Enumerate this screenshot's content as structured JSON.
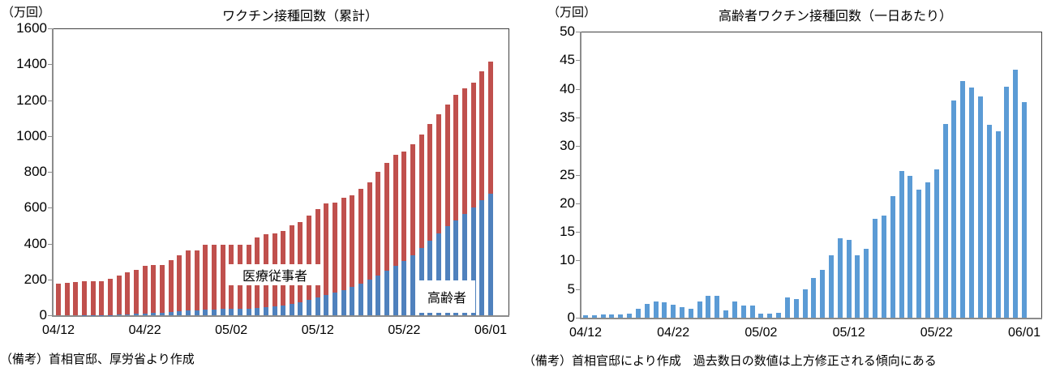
{
  "left": {
    "unit": "（万回）",
    "title": "ワクチン接種回数（累計）",
    "note": "（備考）首相官邸、厚労省より作成",
    "yticks": [
      "1600",
      "1400",
      "1200",
      "1000",
      "800",
      "600",
      "400",
      "200",
      "0"
    ],
    "xticks": [
      "04/12",
      "04/22",
      "05/02",
      "05/12",
      "05/22",
      "06/01"
    ],
    "label_medical": "医療従事者",
    "label_elderly": "高齢者",
    "colors": {
      "medical": "#c0504d",
      "elderly": "#4f81bd"
    }
  },
  "right": {
    "unit": "（万回）",
    "title": "高齢者ワクチン接種回数（一日あたり）",
    "note": "（備考）首相官邸により作成　過去数日の数値は上方修正される傾向にある",
    "yticks": [
      "50",
      "45",
      "40",
      "35",
      "30",
      "25",
      "20",
      "15",
      "10",
      "5",
      "0"
    ],
    "xticks": [
      "04/12",
      "04/22",
      "05/02",
      "05/12",
      "05/22",
      "06/01"
    ],
    "colors": {
      "bar": "#5b9bd5"
    }
  },
  "chart_data": [
    {
      "type": "bar",
      "stacked": true,
      "title": "ワクチン接種回数（累計）",
      "ylabel": "（万回）",
      "xlabel": "",
      "ylim": [
        0,
        1600
      ],
      "grid": false,
      "legend": "inline labels: 医療従事者 (red, upper), 高齢者 (blue, lower)",
      "categories": [
        "04/12",
        "04/13",
        "04/14",
        "04/15",
        "04/16",
        "04/17",
        "04/18",
        "04/19",
        "04/20",
        "04/21",
        "04/22",
        "04/23",
        "04/24",
        "04/25",
        "04/26",
        "04/27",
        "04/28",
        "04/29",
        "04/30",
        "05/01",
        "05/02",
        "05/03",
        "05/04",
        "05/05",
        "05/06",
        "05/07",
        "05/08",
        "05/09",
        "05/10",
        "05/11",
        "05/12",
        "05/13",
        "05/14",
        "05/15",
        "05/16",
        "05/17",
        "05/18",
        "05/19",
        "05/20",
        "05/21",
        "05/22",
        "05/23",
        "05/24",
        "05/25",
        "05/26",
        "05/27",
        "05/28",
        "05/29",
        "05/30",
        "05/31",
        "06/01"
      ],
      "series": [
        {
          "name": "高齢者",
          "values": [
            0,
            0,
            0,
            1,
            1,
            1,
            2,
            3,
            5,
            7,
            10,
            12,
            14,
            18,
            21,
            25,
            27,
            31,
            33,
            35,
            36,
            37,
            38,
            42,
            46,
            50,
            56,
            63,
            71,
            85,
            100,
            112,
            125,
            140,
            158,
            178,
            200,
            222,
            247,
            275,
            305,
            335,
            375,
            415,
            455,
            495,
            530,
            565,
            600,
            640,
            680
          ]
        },
        {
          "name": "医療従事者",
          "values": [
            175,
            180,
            185,
            189,
            189,
            191,
            203,
            219,
            235,
            248,
            265,
            266,
            266,
            290,
            312,
            337,
            335,
            362,
            360,
            360,
            359,
            358,
            357,
            393,
            406,
            408,
            414,
            437,
            449,
            470,
            490,
            510,
            503,
            515,
            512,
            527,
            540,
            578,
            603,
            620,
            610,
            620,
            635,
            650,
            665,
            680,
            700,
            700,
            695,
            720,
            735
          ]
        }
      ]
    },
    {
      "type": "bar",
      "title": "高齢者ワクチン接種回数（一日あたり）",
      "ylabel": "（万回）",
      "xlabel": "",
      "ylim": [
        0,
        50
      ],
      "grid": false,
      "categories": [
        "04/12",
        "04/13",
        "04/14",
        "04/15",
        "04/16",
        "04/17",
        "04/18",
        "04/19",
        "04/20",
        "04/21",
        "04/22",
        "04/23",
        "04/24",
        "04/25",
        "04/26",
        "04/27",
        "04/28",
        "04/29",
        "04/30",
        "05/01",
        "05/02",
        "05/03",
        "05/04",
        "05/05",
        "05/06",
        "05/07",
        "05/08",
        "05/09",
        "05/10",
        "05/11",
        "05/12",
        "05/13",
        "05/14",
        "05/15",
        "05/16",
        "05/17",
        "05/18",
        "05/19",
        "05/20",
        "05/21",
        "05/22",
        "05/23",
        "05/24",
        "05/25",
        "05/26",
        "05/27",
        "05/28",
        "05/29",
        "05/30",
        "05/31",
        "06/01"
      ],
      "values": [
        0.4,
        0.4,
        0.5,
        0.5,
        0.5,
        0.7,
        1.5,
        2.4,
        2.9,
        2.7,
        2.3,
        1.8,
        1.5,
        2.8,
        3.8,
        3.8,
        1.3,
        2.9,
        2.1,
        2.1,
        0.7,
        0.7,
        0.9,
        3.5,
        3.2,
        4.9,
        6.9,
        8.4,
        10.9,
        13.9,
        13.6,
        10.9,
        12.1,
        17.3,
        17.9,
        21.3,
        25.6,
        24.8,
        22.4,
        23.7,
        25.9,
        33.8,
        38.0,
        41.3,
        40.2,
        38.7,
        33.7,
        32.6,
        40.3,
        43.4,
        37.7
      ]
    }
  ]
}
